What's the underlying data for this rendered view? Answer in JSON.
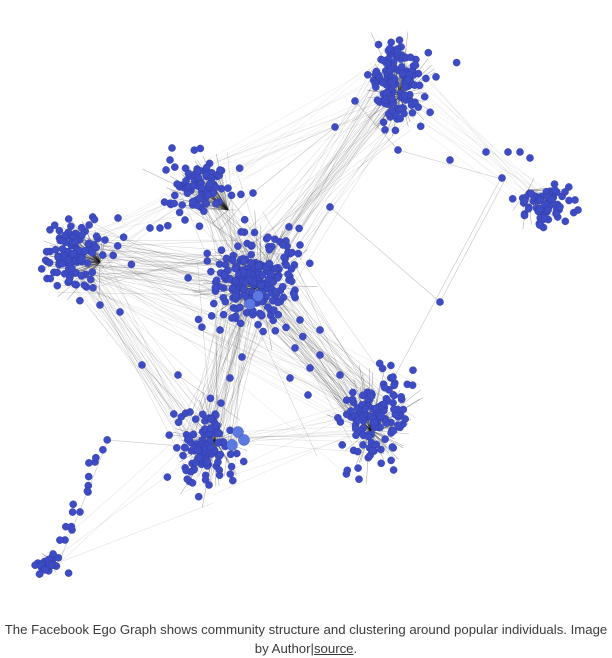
{
  "figure": {
    "description_visible": false,
    "node_color": "#3d4cc4",
    "highlight_color": "#5b79e0",
    "edge_color": "#1a1a1a",
    "background": "#ffffff"
  },
  "caption": {
    "text": "The Facebook Ego Graph shows community structure and clustering around popular individuals. Image by Author|",
    "link_text": "source",
    "trailing": "."
  }
}
